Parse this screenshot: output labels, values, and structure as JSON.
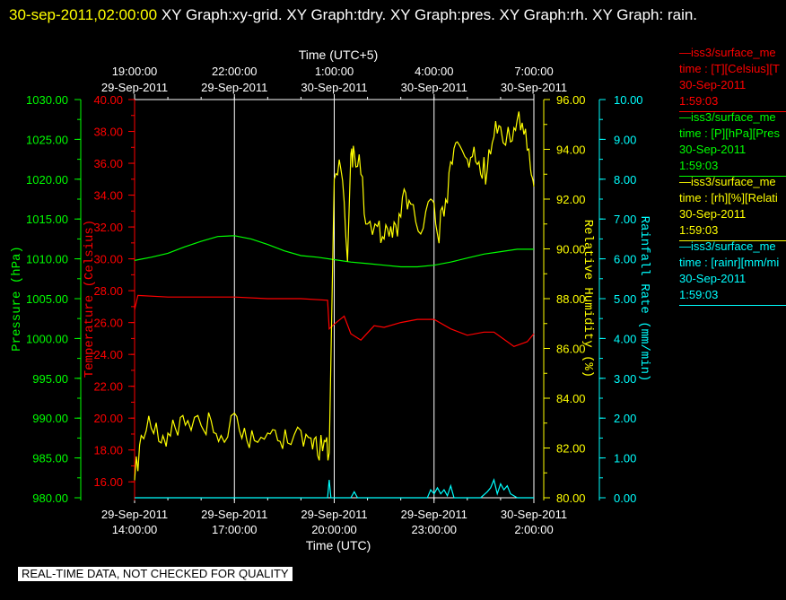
{
  "header": {
    "timestamp": "30-sep-2011,02:00:00",
    "titles": "XY Graph:xy-grid.  XY Graph:tdry.  XY Graph:pres.  XY Graph:rh.  XY Graph: rain."
  },
  "colors": {
    "background": "#000000",
    "pressure": "#00ff00",
    "temperature": "#ff0000",
    "humidity": "#ffff00",
    "rain": "#00ffff",
    "grid": "#ffffff"
  },
  "legend": [
    {
      "line1": "—iss3/surface_me",
      "line2": "time : [T][Celsius][T",
      "line3": "30-Sep-2011",
      "line4": "1:59:03",
      "color": "#ff0000"
    },
    {
      "line1": "—iss3/surface_me",
      "line2": "time : [P][hPa][Pres",
      "line3": "30-Sep-2011",
      "line4": "1:59:03",
      "color": "#00ff00"
    },
    {
      "line1": "—iss3/surface_me",
      "line2": "time : [rh][%][Relati",
      "line3": "30-Sep-2011",
      "line4": "1:59:03",
      "color": "#ffff00"
    },
    {
      "line1": "—iss3/surface_me",
      "line2": "time : [rainr][mm/mi",
      "line3": "30-Sep-2011",
      "line4": "1:59:03",
      "color": "#00ffff"
    }
  ],
  "note": "REAL-TIME DATA, NOT CHECKED FOR QUALITY",
  "chart_data": {
    "type": "line",
    "xlabel_bottom": "Time (UTC)",
    "xlabel_top": "Time (UTC+5)",
    "x_range": [
      "29-Sep-2011 14:00",
      "30-Sep-2011 02:00"
    ],
    "bottom_ticks": [
      {
        "date": "29-Sep-2011",
        "time": "14:00:00"
      },
      {
        "date": "29-Sep-2011",
        "time": "17:00:00"
      },
      {
        "date": "29-Sep-2011",
        "time": "20:00:00"
      },
      {
        "date": "29-Sep-2011",
        "time": "23:00:00"
      },
      {
        "date": "30-Sep-2011",
        "time": "2:00:00"
      }
    ],
    "top_ticks": [
      {
        "time": "19:00:00",
        "date": "29-Sep-2011"
      },
      {
        "time": "22:00:00",
        "date": "29-Sep-2011"
      },
      {
        "time": "1:00:00",
        "date": "30-Sep-2011"
      },
      {
        "time": "4:00:00",
        "date": "30-Sep-2011"
      },
      {
        "time": "7:00:00",
        "date": "30-Sep-2011"
      }
    ],
    "axes": {
      "pressure": {
        "label": "Pressure (hPa)",
        "range": [
          980,
          1030
        ],
        "ticks": [
          "980.00",
          "985.00",
          "990.00",
          "995.00",
          "1000.00",
          "1005.00",
          "1010.00",
          "1015.00",
          "1020.00",
          "1025.00",
          "1030.00"
        ]
      },
      "temperature": {
        "label": "Temperature (Celsius)",
        "range": [
          15,
          40
        ],
        "ticks": [
          "16.00",
          "18.00",
          "20.00",
          "22.00",
          "24.00",
          "26.00",
          "28.00",
          "30.00",
          "32.00",
          "34.00",
          "36.00",
          "38.00",
          "40.00"
        ]
      },
      "humidity": {
        "label": "Relative Humidity (%)",
        "range": [
          80,
          96
        ],
        "ticks": [
          "80.00",
          "82.00",
          "84.00",
          "86.00",
          "88.00",
          "90.00",
          "92.00",
          "94.00",
          "96.00"
        ]
      },
      "rain": {
        "label": "Rainfall Rate (mm/min)",
        "range": [
          0,
          10
        ],
        "ticks": [
          "0.00",
          "1.00",
          "2.00",
          "3.00",
          "4.00",
          "5.00",
          "6.00",
          "7.00",
          "8.00",
          "9.00",
          "10.00"
        ]
      }
    },
    "series": [
      {
        "key": "pressure",
        "color": "#00ff00",
        "x": [
          14.0,
          14.5,
          15.0,
          15.5,
          16.0,
          16.5,
          17.0,
          17.5,
          18.0,
          18.5,
          19.0,
          19.5,
          20.0,
          20.5,
          21.0,
          21.5,
          22.0,
          22.5,
          23.0,
          23.5,
          24.0,
          24.5,
          25.0,
          25.5,
          26.0
        ],
        "y": [
          1009.8,
          1010.2,
          1010.7,
          1011.5,
          1012.2,
          1012.8,
          1012.9,
          1012.5,
          1011.8,
          1011.0,
          1010.4,
          1010.2,
          1009.9,
          1009.6,
          1009.4,
          1009.2,
          1009.0,
          1009.0,
          1009.2,
          1009.6,
          1010.1,
          1010.6,
          1010.9,
          1011.2,
          1011.2
        ]
      },
      {
        "key": "temperature",
        "color": "#ff0000",
        "x": [
          14.0,
          14.1,
          15.0,
          16.0,
          17.0,
          18.0,
          19.0,
          19.8,
          19.85,
          20.0,
          20.3,
          20.5,
          20.8,
          21.2,
          21.5,
          22.0,
          22.5,
          23.0,
          23.5,
          24.0,
          24.5,
          24.8,
          25.0,
          25.4,
          25.8,
          26.0
        ],
        "y": [
          26.8,
          27.7,
          27.6,
          27.6,
          27.6,
          27.5,
          27.5,
          27.4,
          25.6,
          25.9,
          26.4,
          25.3,
          24.9,
          25.8,
          25.7,
          26.0,
          26.2,
          26.2,
          25.6,
          25.2,
          25.4,
          25.4,
          25.1,
          24.5,
          24.8,
          25.3
        ]
      },
      {
        "key": "humidity",
        "color": "#ffff00",
        "x": [
          14.0,
          14.2,
          14.5,
          14.8,
          15.0,
          15.3,
          15.6,
          16.0,
          16.3,
          16.6,
          17.0,
          17.3,
          17.6,
          18.0,
          18.3,
          18.6,
          19.0,
          19.3,
          19.5,
          19.7,
          19.85,
          20.0,
          20.2,
          20.4,
          20.5,
          20.6,
          20.8,
          21.0,
          21.3,
          21.5,
          21.7,
          21.9,
          22.1,
          22.3,
          22.6,
          22.9,
          23.1,
          23.3,
          23.5,
          23.7,
          24.0,
          24.2,
          24.4,
          24.6,
          24.8,
          25.0,
          25.3,
          25.5,
          25.7,
          25.9,
          26.0
        ],
        "y": [
          80.7,
          82.5,
          82.8,
          82.2,
          82.6,
          82.5,
          83.1,
          82.9,
          83.1,
          82.5,
          83.4,
          82.8,
          82.3,
          82.6,
          82.3,
          82.2,
          82.7,
          82.4,
          81.7,
          82.3,
          81.8,
          92.8,
          93.2,
          89.5,
          93.8,
          93.9,
          93.0,
          91.0,
          90.9,
          90.4,
          90.9,
          90.5,
          92.4,
          91.8,
          90.6,
          92.0,
          90.6,
          91.3,
          93.5,
          94.3,
          93.6,
          94.1,
          93.0,
          93.2,
          94.5,
          94.9,
          94.3,
          95.2,
          94.6,
          93.2,
          92.5
        ]
      },
      {
        "key": "rain",
        "color": "#00ffff",
        "x": [
          14.0,
          19.6,
          19.8,
          19.85,
          19.9,
          20.0,
          20.5,
          20.6,
          20.7,
          21.0,
          22.0,
          22.8,
          22.9,
          23.0,
          23.1,
          23.2,
          23.3,
          23.4,
          23.5,
          23.6,
          24.0,
          24.4,
          24.6,
          24.7,
          24.8,
          24.9,
          25.0,
          25.1,
          25.2,
          25.3,
          25.5,
          26.0
        ],
        "y": [
          0.0,
          0.0,
          0.0,
          0.45,
          0.0,
          0.0,
          0.0,
          0.15,
          0.0,
          0.0,
          0.0,
          0.0,
          0.2,
          0.1,
          0.25,
          0.1,
          0.2,
          0.05,
          0.3,
          0.0,
          0.0,
          0.0,
          0.15,
          0.25,
          0.45,
          0.1,
          0.35,
          0.2,
          0.3,
          0.1,
          0.0,
          0.0
        ]
      }
    ]
  }
}
